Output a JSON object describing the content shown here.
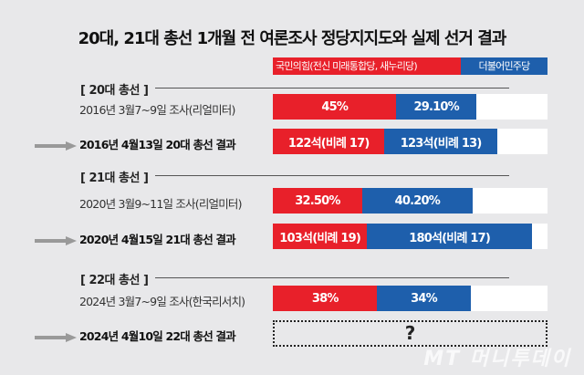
{
  "chart_data": {
    "type": "bar",
    "title": "20대, 21대 총선 1개월 전 여론조사 정당지지도와 실제 선거 결과",
    "legend": [
      {
        "name": "국민의힘(전신 미래통합당, 새누리당)",
        "color": "#e8202a"
      },
      {
        "name": "더불어민주당",
        "color": "#1e5fac"
      }
    ],
    "sections": [
      {
        "header": "[ 20대 총선 ]",
        "rows": [
          {
            "label": "2016년 3월7~9일 조사(리얼미터)",
            "result": false,
            "values": [
              45,
              29.1
            ],
            "max": 100,
            "texts": [
              "45%",
              "29.10%"
            ]
          },
          {
            "label": "2016년 4월13일 20대 총선 결과",
            "result": true,
            "values": [
              122,
              123
            ],
            "max": 300,
            "texts": [
              "122석(비례 17)",
              "123석(비례 13)"
            ]
          }
        ]
      },
      {
        "header": "[ 21대 총선 ]",
        "rows": [
          {
            "label": "2020년 3월9~11일 조사(리얼미터)",
            "result": false,
            "values": [
              32.5,
              40.2
            ],
            "max": 100,
            "texts": [
              "32.50%",
              "40.20%"
            ]
          },
          {
            "label": "2020년 4월15일 21대 총선 결과",
            "result": true,
            "values": [
              103,
              180
            ],
            "max": 300,
            "texts": [
              "103석(비례 19)",
              "180석(비례 17)"
            ]
          }
        ]
      },
      {
        "header": "[ 22대 총선 ]",
        "rows": [
          {
            "label": "2024년 3월7~9일 조사(한국리서치)",
            "result": false,
            "values": [
              38,
              34
            ],
            "max": 100,
            "texts": [
              "38%",
              "34%"
            ]
          },
          {
            "label": "2024년 4월10일 22대 총선 결과",
            "result": true,
            "unknown": "?"
          }
        ]
      }
    ]
  },
  "watermark": "MT 머니투데이"
}
